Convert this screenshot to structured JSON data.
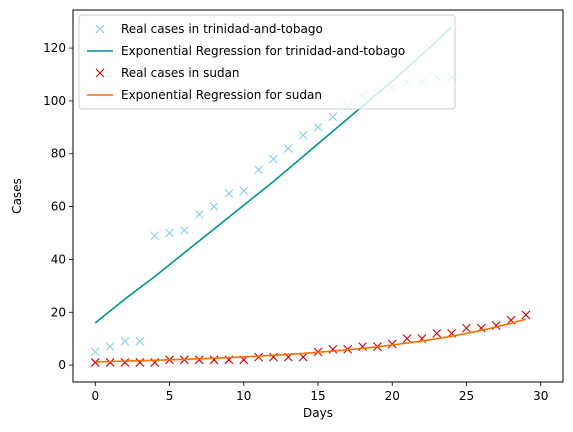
{
  "chart_data": {
    "type": "scatter",
    "title": "",
    "xlabel": "Days",
    "ylabel": "Cases",
    "xlim": [
      -1.5,
      31.5
    ],
    "ylim": [
      -6.4,
      134.4
    ],
    "x_ticks": [
      0,
      5,
      10,
      15,
      20,
      25,
      30
    ],
    "y_ticks": [
      0,
      20,
      40,
      60,
      80,
      100,
      120
    ],
    "grid": false,
    "legend": "top-left",
    "series": [
      {
        "name": "Real cases in trinidad-and-tobago",
        "kind": "scatter",
        "marker": "x",
        "color": "#87ceeb",
        "x": [
          0,
          1,
          2,
          3,
          4,
          5,
          6,
          7,
          8,
          9,
          10,
          11,
          12,
          13,
          14,
          15,
          16,
          17,
          18,
          19,
          20,
          21,
          22,
          23,
          24
        ],
        "y": [
          5,
          7,
          9,
          9,
          49,
          50,
          51,
          57,
          60,
          65,
          66,
          74,
          78,
          82,
          87,
          90,
          94,
          98,
          102,
          103,
          105,
          107,
          107,
          109,
          109
        ]
      },
      {
        "name": "Exponential Regression for trinidad-and-tobago",
        "kind": "line",
        "color": "#009688",
        "x": [
          0,
          2,
          4,
          6,
          8,
          10,
          12,
          14,
          16,
          18,
          20,
          22,
          24
        ],
        "y": [
          16,
          25,
          33.5,
          42.5,
          51.5,
          60.5,
          69.5,
          79,
          88.5,
          98,
          107.5,
          117.5,
          128
        ]
      },
      {
        "name": "Real cases in sudan",
        "kind": "scatter",
        "marker": "x",
        "color": "#cc0000",
        "x": [
          0,
          1,
          2,
          3,
          4,
          5,
          6,
          7,
          8,
          9,
          10,
          11,
          12,
          13,
          14,
          15,
          16,
          17,
          18,
          19,
          20,
          21,
          22,
          23,
          24,
          25,
          26,
          27,
          28,
          29
        ],
        "y": [
          1,
          1,
          1,
          1,
          1,
          2,
          2,
          2,
          2,
          2,
          2,
          3,
          3,
          3,
          3,
          5,
          6,
          6,
          7,
          7,
          8,
          10,
          10,
          12,
          12,
          14,
          14,
          15,
          17,
          19
        ]
      },
      {
        "name": "Exponential Regression for sudan",
        "kind": "line",
        "color": "#ff6f00",
        "x": [
          0,
          2,
          4,
          6,
          8,
          10,
          12,
          14,
          16,
          18,
          20,
          22,
          24,
          26,
          28,
          29
        ],
        "y": [
          1.2,
          1.5,
          1.8,
          2.2,
          2.6,
          3.1,
          3.7,
          4.4,
          5.3,
          6.3,
          7.6,
          9.1,
          10.9,
          13.1,
          15.8,
          17.4
        ]
      }
    ]
  }
}
